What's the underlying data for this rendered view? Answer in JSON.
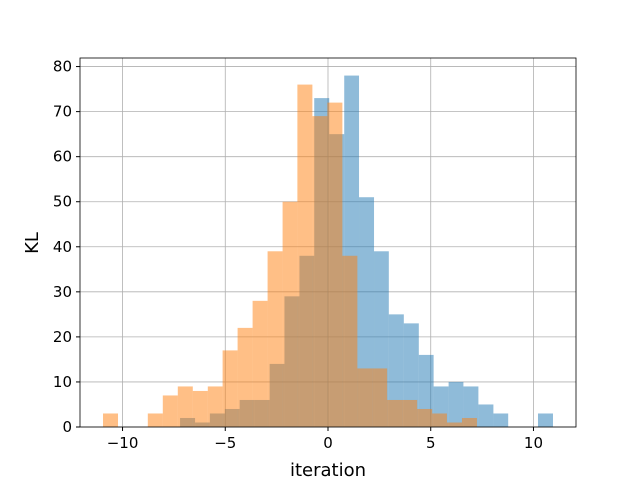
{
  "chart_data": {
    "type": "histogram",
    "xlabel": "iteration",
    "ylabel": "KL",
    "series": [
      {
        "color": "#1f77b4",
        "alpha": 0.5,
        "bins": [
          -7.2,
          -6.47,
          -5.75,
          -5.02,
          -4.3,
          -3.57,
          -2.84,
          -2.12,
          -1.39,
          -0.67,
          0.06,
          0.79,
          1.51,
          2.24,
          2.96,
          3.69,
          4.42,
          5.14,
          5.87,
          6.59,
          7.32,
          8.05,
          8.77,
          9.5,
          10.22,
          10.95
        ],
        "values": [
          2,
          1,
          3,
          4,
          6,
          6,
          14,
          29,
          38,
          73,
          65,
          78,
          51,
          39,
          25,
          23,
          16,
          9,
          10,
          9,
          5,
          3,
          0,
          0,
          3
        ]
      },
      {
        "color": "#ff7f0e",
        "alpha": 0.5,
        "bins": [
          -10.95,
          -10.22,
          -9.49,
          -8.77,
          -8.04,
          -7.31,
          -6.58,
          -5.85,
          -5.13,
          -4.4,
          -3.67,
          -2.94,
          -2.21,
          -1.49,
          -0.76,
          -0.03,
          0.7,
          1.43,
          2.15,
          2.88,
          3.61,
          4.34,
          5.07,
          5.79,
          6.52,
          7.25
        ],
        "values": [
          3,
          0,
          0,
          3,
          7,
          9,
          8,
          9,
          17,
          22,
          28,
          39,
          50,
          76,
          69,
          72,
          38,
          13,
          13,
          6,
          6,
          4,
          3,
          1,
          2
        ]
      }
    ],
    "xlim": [
      -12.07,
      12.07
    ],
    "ylim": [
      0,
      81.9
    ],
    "xticks": [
      {
        "value": -10,
        "label": "−10"
      },
      {
        "value": -5,
        "label": "−5"
      },
      0,
      5,
      10
    ],
    "yticks": [
      0,
      10,
      20,
      30,
      40,
      50,
      60,
      70,
      80
    ],
    "grid": true
  }
}
